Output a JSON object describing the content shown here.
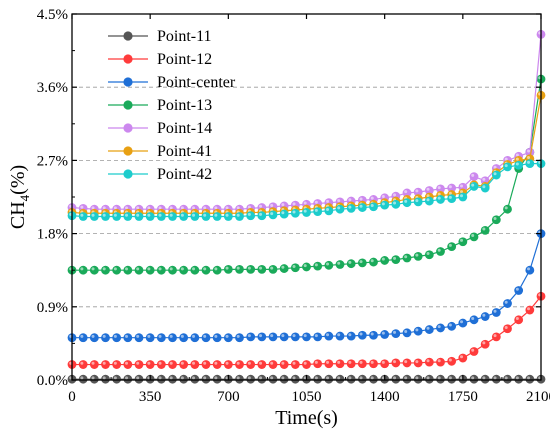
{
  "chart_data": {
    "type": "line",
    "title": "",
    "xlabel": "Time(s)",
    "ylabel": {
      "main": "CH",
      "sub": "4",
      "suffix": "(%)"
    },
    "xlim": [
      0,
      2100
    ],
    "ylim": [
      0,
      4.5
    ],
    "x_ticks": [
      0,
      350,
      700,
      1050,
      1400,
      1750,
      2100
    ],
    "y_ticks": [
      0,
      0.9,
      1.8,
      2.7,
      3.6,
      4.5
    ],
    "y_tick_labels": [
      "0.0%",
      "0.9%",
      "1.8%",
      "2.7%",
      "3.6%",
      "4.5%"
    ],
    "grid": "horizontal-dashed",
    "legend_position": "top-left",
    "x": [
      0,
      50,
      100,
      150,
      200,
      250,
      300,
      350,
      400,
      450,
      500,
      550,
      600,
      650,
      700,
      750,
      800,
      850,
      900,
      950,
      1000,
      1050,
      1100,
      1150,
      1200,
      1250,
      1300,
      1350,
      1400,
      1450,
      1500,
      1550,
      1600,
      1650,
      1700,
      1750,
      1800,
      1850,
      1900,
      1950,
      2000,
      2050,
      2100
    ],
    "series": [
      {
        "name": "Point-11",
        "color": "#555555",
        "values": [
          0.01,
          0.01,
          0.01,
          0.01,
          0.01,
          0.01,
          0.01,
          0.01,
          0.01,
          0.01,
          0.01,
          0.01,
          0.01,
          0.01,
          0.01,
          0.01,
          0.01,
          0.01,
          0.01,
          0.01,
          0.01,
          0.01,
          0.01,
          0.01,
          0.01,
          0.01,
          0.01,
          0.01,
          0.01,
          0.01,
          0.01,
          0.01,
          0.01,
          0.01,
          0.01,
          0.01,
          0.01,
          0.01,
          0.01,
          0.01,
          0.01,
          0.01,
          0.01
        ]
      },
      {
        "name": "Point-12",
        "color": "#ff3b3b",
        "values": [
          0.19,
          0.19,
          0.19,
          0.19,
          0.19,
          0.19,
          0.19,
          0.19,
          0.19,
          0.19,
          0.19,
          0.19,
          0.19,
          0.19,
          0.19,
          0.19,
          0.19,
          0.19,
          0.19,
          0.19,
          0.19,
          0.19,
          0.2,
          0.2,
          0.2,
          0.2,
          0.2,
          0.2,
          0.2,
          0.21,
          0.21,
          0.21,
          0.22,
          0.22,
          0.23,
          0.27,
          0.35,
          0.44,
          0.53,
          0.63,
          0.74,
          0.86,
          1.03
        ]
      },
      {
        "name": "Point-center",
        "color": "#1f6fd6",
        "values": [
          0.52,
          0.52,
          0.52,
          0.52,
          0.52,
          0.52,
          0.52,
          0.52,
          0.52,
          0.52,
          0.52,
          0.52,
          0.52,
          0.52,
          0.52,
          0.52,
          0.53,
          0.53,
          0.53,
          0.53,
          0.53,
          0.53,
          0.53,
          0.54,
          0.54,
          0.54,
          0.55,
          0.55,
          0.56,
          0.57,
          0.58,
          0.6,
          0.62,
          0.64,
          0.66,
          0.7,
          0.74,
          0.78,
          0.83,
          0.94,
          1.1,
          1.35,
          1.8
        ]
      },
      {
        "name": "Point-13",
        "color": "#1aaa5a",
        "values": [
          1.35,
          1.35,
          1.35,
          1.35,
          1.35,
          1.35,
          1.35,
          1.35,
          1.35,
          1.35,
          1.35,
          1.35,
          1.35,
          1.35,
          1.36,
          1.36,
          1.36,
          1.36,
          1.36,
          1.37,
          1.38,
          1.39,
          1.4,
          1.41,
          1.42,
          1.43,
          1.44,
          1.45,
          1.47,
          1.48,
          1.5,
          1.52,
          1.54,
          1.58,
          1.64,
          1.7,
          1.76,
          1.84,
          1.97,
          2.1,
          2.6,
          2.8,
          3.7
        ]
      },
      {
        "name": "Point-14",
        "color": "#cc88ee",
        "values": [
          2.12,
          2.11,
          2.1,
          2.1,
          2.1,
          2.1,
          2.1,
          2.1,
          2.1,
          2.1,
          2.1,
          2.1,
          2.1,
          2.1,
          2.1,
          2.1,
          2.11,
          2.12,
          2.13,
          2.14,
          2.15,
          2.16,
          2.17,
          2.18,
          2.19,
          2.2,
          2.21,
          2.22,
          2.24,
          2.26,
          2.3,
          2.31,
          2.33,
          2.35,
          2.36,
          2.37,
          2.5,
          2.45,
          2.6,
          2.7,
          2.75,
          2.8,
          4.25
        ]
      },
      {
        "name": "Point-41",
        "color": "#e8a012",
        "values": [
          2.06,
          2.05,
          2.05,
          2.05,
          2.05,
          2.05,
          2.05,
          2.05,
          2.05,
          2.05,
          2.05,
          2.05,
          2.05,
          2.05,
          2.05,
          2.05,
          2.06,
          2.06,
          2.07,
          2.08,
          2.09,
          2.1,
          2.11,
          2.12,
          2.13,
          2.14,
          2.15,
          2.16,
          2.18,
          2.2,
          2.22,
          2.23,
          2.25,
          2.27,
          2.28,
          2.3,
          2.4,
          2.38,
          2.55,
          2.65,
          2.7,
          2.72,
          3.5
        ]
      },
      {
        "name": "Point-42",
        "color": "#1ccccc",
        "values": [
          2.02,
          2.01,
          2.01,
          2.01,
          2.01,
          2.01,
          2.01,
          2.01,
          2.01,
          2.01,
          2.01,
          2.01,
          2.01,
          2.01,
          2.01,
          2.01,
          2.02,
          2.02,
          2.03,
          2.04,
          2.05,
          2.06,
          2.07,
          2.08,
          2.1,
          2.11,
          2.12,
          2.13,
          2.15,
          2.16,
          2.18,
          2.19,
          2.2,
          2.22,
          2.23,
          2.25,
          2.38,
          2.36,
          2.52,
          2.62,
          2.64,
          2.66,
          2.66
        ]
      }
    ]
  }
}
